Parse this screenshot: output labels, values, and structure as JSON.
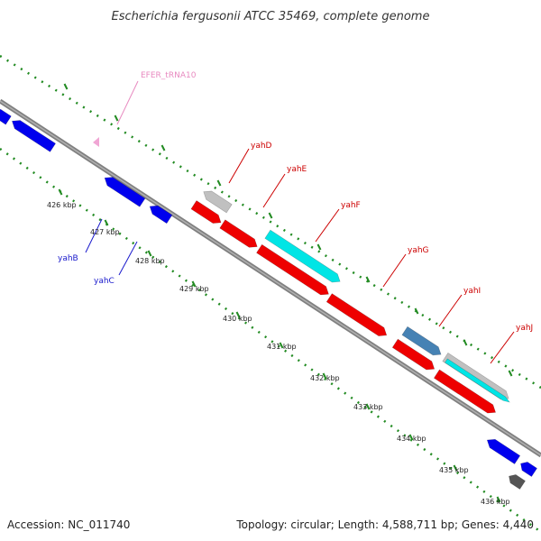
{
  "title": "Escherichia fergusonii ATCC 35469, complete genome",
  "footer": {
    "accession": "Accession: NC_011740",
    "summary": "Topology: circular; Length: 4,588,711 bp; Genes: 4,440"
  },
  "ticks": [
    "426 kbp",
    "427 kbp",
    "428 kbp",
    "429 kbp",
    "430 kbp",
    "431 kbp",
    "432 kbp",
    "433 kbp",
    "434 kbp",
    "435 kbp",
    "436 kbp"
  ],
  "gene_labels": [
    {
      "name": "EFER_tRNA10",
      "color": "#e88ac0"
    },
    {
      "name": "yahB",
      "color": "#1a1acc"
    },
    {
      "name": "yahC",
      "color": "#1a1acc"
    },
    {
      "name": "yahD",
      "color": "#cc0000"
    },
    {
      "name": "yahE",
      "color": "#cc0000"
    },
    {
      "name": "yahF",
      "color": "#cc0000"
    },
    {
      "name": "yahG",
      "color": "#cc0000"
    },
    {
      "name": "yahI",
      "color": "#cc0000"
    },
    {
      "name": "yahJ",
      "color": "#cc0000"
    }
  ],
  "colors": {
    "backbone": "#808080",
    "ruler_dots": "#228b22",
    "forward_cds": "#ee0000",
    "reverse_cds": "#0000ee",
    "rna": "#00e5e5",
    "pseudo": "#c0c0c0",
    "other": "#4682b4"
  }
}
